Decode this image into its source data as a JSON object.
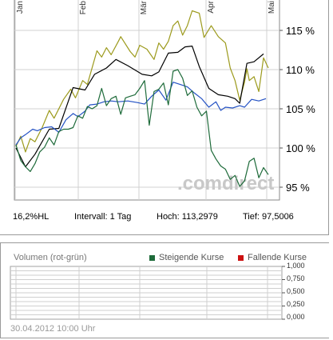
{
  "chart_data": {
    "type": "line",
    "x_labels": [
      "Jan",
      "Feb",
      "Mär",
      "Apr",
      "Mai"
    ],
    "ylim": [
      93,
      120
    ],
    "y_ticks": [
      "115 %",
      "110 %",
      "105 %",
      "100 %",
      "95 %"
    ],
    "y_tick_values": [
      115,
      110,
      105,
      100,
      95
    ],
    "watermark": ".comdirect",
    "series": [
      {
        "color": "#9c9a1c",
        "x": [
          0,
          2,
          4,
          6,
          8,
          11,
          14,
          16,
          20,
          23,
          25,
          28,
          30,
          34,
          36,
          38,
          40,
          43,
          44,
          48,
          50,
          52,
          55,
          58,
          60,
          62,
          64,
          66,
          68,
          70,
          72,
          74,
          77,
          79,
          82,
          85,
          88,
          90,
          92,
          94,
          96,
          97,
          98,
          100,
          102,
          104,
          106
        ],
        "values": [
          100.2,
          101.5,
          99.5,
          101.2,
          100.8,
          102.6,
          104.8,
          103.8,
          106.2,
          107.5,
          106.4,
          108.6,
          108.1,
          112.4,
          111.6,
          112.8,
          111.9,
          113.6,
          114.2,
          112.3,
          111.6,
          113.1,
          112.6,
          111.3,
          113.4,
          112.6,
          113.6,
          115.6,
          116.2,
          114.4,
          115.6,
          117.5,
          117.2,
          114.1,
          115.6,
          114.2,
          113.4,
          110.2,
          108.6,
          106.1,
          108.4,
          110.1,
          108.6,
          109.1,
          107.2,
          111.5,
          110.2
        ]
      },
      {
        "color": "#000000",
        "x": [
          0,
          4,
          8,
          14,
          18,
          24,
          29,
          33,
          38,
          42,
          47,
          53,
          57,
          60,
          64,
          68,
          71,
          74,
          77,
          81,
          85,
          89,
          92,
          94,
          97,
          100,
          104
        ],
        "values": [
          100.0,
          97.6,
          99.2,
          102.4,
          102.5,
          107.7,
          107.4,
          109.4,
          110.2,
          111.3,
          110.5,
          109.4,
          109.2,
          109.7,
          112.1,
          112.2,
          112.9,
          113.0,
          110.4,
          107.6,
          106.8,
          106.6,
          106.3,
          105.7,
          110.8,
          111.0,
          112.0
        ]
      },
      {
        "color": "#2452c4",
        "x": [
          0,
          2,
          4,
          7,
          9,
          12,
          15,
          18,
          21,
          24,
          26,
          29,
          31,
          34,
          37,
          40,
          43,
          47,
          51,
          54,
          57,
          60,
          63,
          66,
          69,
          72,
          75,
          78,
          81,
          84,
          86,
          88,
          91,
          94,
          96,
          99,
          102,
          105
        ],
        "values": [
          100.4,
          101.3,
          101.7,
          102.4,
          102.2,
          102.6,
          102.7,
          102.0,
          103.6,
          104.4,
          104.0,
          104.7,
          105.5,
          105.6,
          105.9,
          106.0,
          105.9,
          106.0,
          105.8,
          105.6,
          106.6,
          107.4,
          106.1,
          108.4,
          108.1,
          107.8,
          107.0,
          106.3,
          105.2,
          105.9,
          104.8,
          105.2,
          105.1,
          105.4,
          105.2,
          106.2,
          106.0,
          106.3
        ]
      },
      {
        "color": "#1e6b3a",
        "x": [
          0,
          2,
          4,
          6,
          8,
          10,
          12,
          14,
          16,
          18,
          20,
          22,
          24,
          26,
          28,
          30,
          32,
          34,
          36,
          38,
          40,
          42,
          44,
          46,
          48,
          50,
          52,
          54,
          56,
          58,
          60,
          62,
          64,
          66,
          68,
          70,
          72,
          74,
          76,
          78,
          80,
          82,
          84,
          86,
          88,
          90,
          92,
          94,
          96,
          98,
          100,
          102,
          104,
          106
        ],
        "values": [
          100.4,
          98.4,
          97.6,
          97.0,
          98.0,
          99.5,
          100.1,
          101.3,
          100.4,
          102.1,
          102.4,
          102.4,
          102.6,
          104.1,
          103.8,
          105.3,
          105.0,
          105.4,
          107.6,
          105.4,
          106.3,
          106.6,
          104.3,
          106.4,
          106.6,
          106.8,
          107.6,
          108.6,
          102.9,
          107.2,
          107.5,
          108.3,
          105.5,
          109.8,
          110.0,
          108.9,
          106.7,
          107.3,
          105.2,
          104.1,
          104.7,
          99.7,
          98.6,
          97.7,
          97.3,
          96.0,
          96.5,
          95.1,
          95.8,
          98.3,
          98.7,
          96.2,
          97.5,
          96.6
        ]
      }
    ]
  },
  "stats": {
    "period": "16,2%HL",
    "interval": "Intervall: 1 Tag",
    "high": "Hoch: 113,2979",
    "low": "Tief: 97,5006"
  },
  "volume": {
    "title": "Volumen (rot-grün)",
    "legend_up": "Steigende Kurse",
    "legend_down": "Fallende Kurse",
    "legend_up_color": "#1e6b3a",
    "legend_down_color": "#cc1111",
    "ticks": [
      "1,000",
      "0,750",
      "0,500",
      "0,250",
      "0,000"
    ],
    "date": "30.04.2012 10:00 Uhr"
  }
}
